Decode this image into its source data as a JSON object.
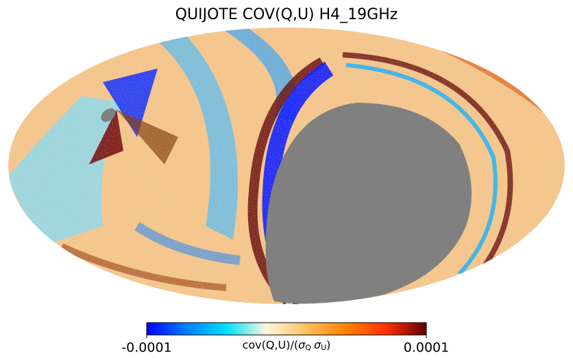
{
  "title": "QUIJOTE COV(Q,U) H4_19GHz",
  "colorbar": {
    "label_parts": [
      "cov(Q,U)/(",
      "σ",
      "Q",
      "σ",
      "U",
      ")"
    ],
    "vlim": [
      -0.0001,
      0.0001
    ],
    "ticks": [
      -0.0001,
      0.0001
    ],
    "colormap": [
      "#0000ff",
      "#0080ff",
      "#00e0ff",
      "#fff6d8",
      "#ffc060",
      "#ff8000",
      "#ff3000",
      "#600000"
    ]
  }
}
